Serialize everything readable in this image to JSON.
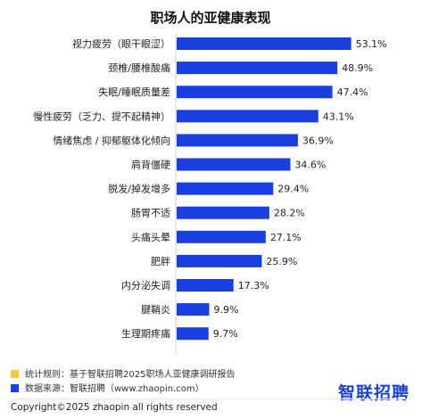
{
  "chart_data": {
    "type": "bar",
    "orientation": "horizontal",
    "title": "职场人的亚健康表现",
    "categories": [
      "视力疲劳（眼干眼涩）",
      "颈椎/腰椎酸痛",
      "失眠/睡眠质量差",
      "慢性疲劳（乏力、提不起精神）",
      "情绪焦虑 / 抑郁躯体化倾向",
      "肩背僵硬",
      "脱发/掉发增多",
      "肠胃不适",
      "头痛头晕",
      "肥胖",
      "内分泌失调",
      "腱鞘炎",
      "生理期疼痛"
    ],
    "values": [
      53.1,
      48.9,
      47.4,
      43.1,
      36.9,
      34.6,
      29.4,
      28.2,
      27.1,
      25.9,
      17.3,
      9.9,
      9.7
    ],
    "value_labels": [
      "53.1%",
      "48.9%",
      "47.4%",
      "43.1%",
      "36.9%",
      "34.6%",
      "29.4%",
      "28.2%",
      "27.1%",
      "25.9%",
      "17.3%",
      "9.9%",
      "9.7%"
    ],
    "xlim": [
      0,
      60
    ],
    "grid": false,
    "bar_color": "#1a3fe0"
  },
  "footer": {
    "rule_text": "统计规则：基于智联招聘2025职场人亚健康调研报告",
    "source_text": "数据来源：智联招聘（www.zhaopin.com）",
    "rule_color": "#f5c842",
    "source_color": "#1a3fe0",
    "copyright": "Copyright©2025 zhaopin all rights reserved"
  },
  "logo": {
    "text": "智联招聘",
    "color": "#1a3fe0"
  }
}
